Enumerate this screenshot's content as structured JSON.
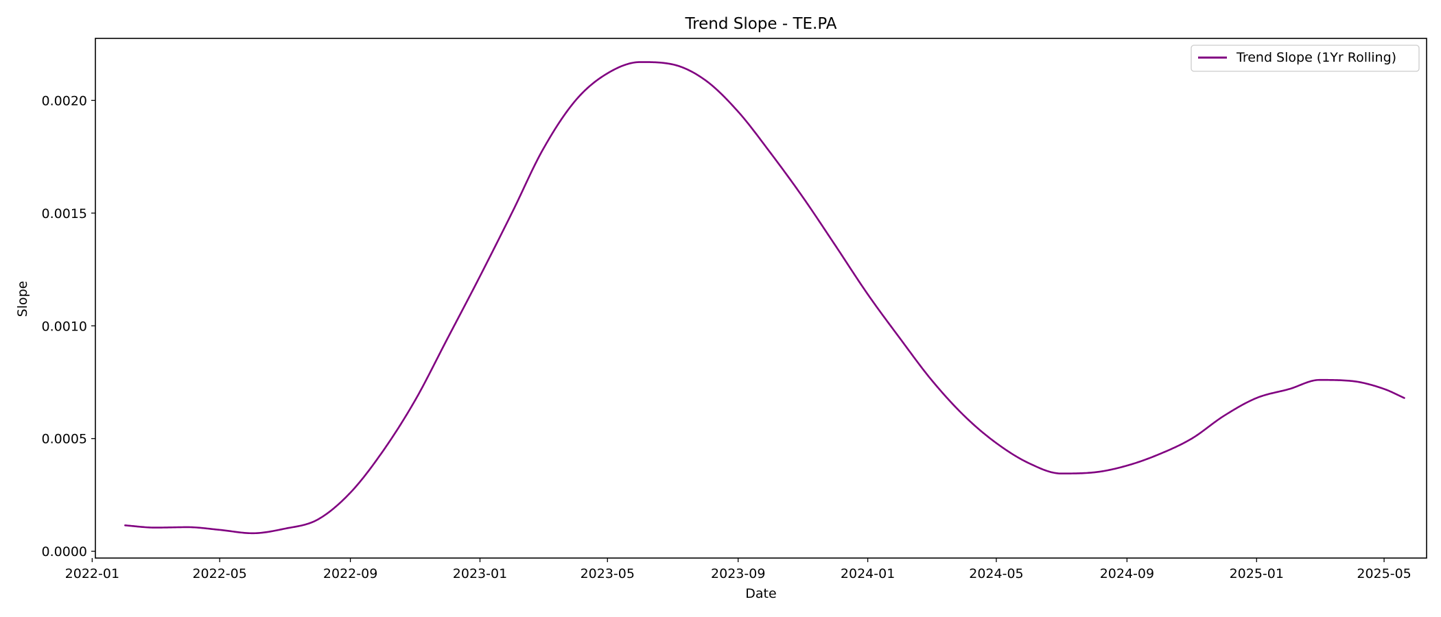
{
  "chart_data": {
    "type": "line",
    "title": "Trend Slope - TE.PA",
    "xlabel": "Date",
    "ylabel": "Slope",
    "x_type": "date",
    "xlim": [
      "2022-01-04",
      "2025-06-10"
    ],
    "ylim": [
      -3e-05,
      0.002275
    ],
    "x_ticks": [
      "2022-01",
      "2022-05",
      "2022-09",
      "2023-01",
      "2023-05",
      "2023-09",
      "2024-01",
      "2024-05",
      "2024-09",
      "2025-01",
      "2025-05"
    ],
    "y_ticks": [
      "0.0000",
      "0.0005",
      "0.0010",
      "0.0015",
      "0.0020"
    ],
    "grid": false,
    "legend_position": "top-right",
    "series": [
      {
        "name": "Trend Slope (1Yr Rolling)",
        "color": "#800080",
        "x": [
          "2022-02-01",
          "2022-03-01",
          "2022-04-01",
          "2022-05-01",
          "2022-06-01",
          "2022-07-01",
          "2022-08-01",
          "2022-09-01",
          "2022-10-01",
          "2022-11-01",
          "2022-12-01",
          "2023-01-01",
          "2023-02-01",
          "2023-03-01",
          "2023-04-01",
          "2023-05-01",
          "2023-06-01",
          "2023-07-01",
          "2023-08-01",
          "2023-09-01",
          "2023-10-01",
          "2023-11-01",
          "2023-12-01",
          "2024-01-01",
          "2024-02-01",
          "2024-03-01",
          "2024-04-01",
          "2024-05-01",
          "2024-06-01",
          "2024-07-01",
          "2024-08-01",
          "2024-09-01",
          "2024-10-01",
          "2024-11-01",
          "2024-12-01",
          "2025-01-01",
          "2025-02-01",
          "2025-03-01",
          "2025-04-01",
          "2025-05-01",
          "2025-05-20"
        ],
        "y": [
          0.000115,
          0.000105,
          0.000107,
          9.5e-05,
          8e-05,
          0.0001,
          0.00014,
          0.00026,
          0.00044,
          0.00067,
          0.00094,
          0.00122,
          0.00151,
          0.00178,
          0.002,
          0.00212,
          0.00217,
          0.00216,
          0.00209,
          0.00195,
          0.00177,
          0.00157,
          0.00136,
          0.00114,
          0.00094,
          0.00076,
          0.0006,
          0.00048,
          0.00039,
          0.000345,
          0.00035,
          0.00038,
          0.00043,
          0.0005,
          0.0006,
          0.00068,
          0.00072,
          0.00076,
          0.000755,
          0.00072,
          0.00068
        ]
      }
    ]
  }
}
